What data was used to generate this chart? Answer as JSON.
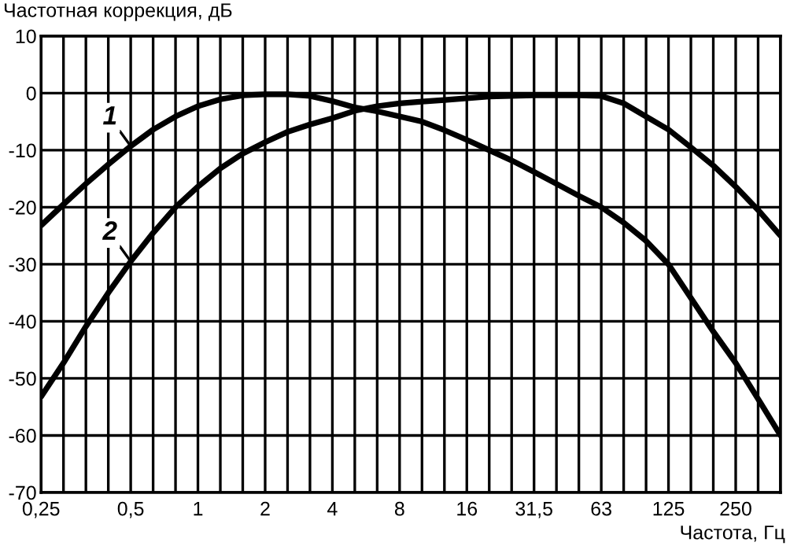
{
  "chart_data": {
    "type": "line",
    "ylabel": "Частотная коррекция, дБ",
    "xlabel": "Частота, Гц",
    "categories": [
      "0,25",
      null,
      null,
      null,
      "0,5",
      null,
      null,
      "1",
      null,
      null,
      "2",
      null,
      null,
      "4",
      null,
      null,
      "8",
      null,
      null,
      "16",
      null,
      null,
      "31,5",
      null,
      null,
      "63",
      null,
      null,
      "125",
      null,
      null,
      "250",
      null,
      null
    ],
    "series": [
      {
        "color": "#000000",
        "values": [
          -23.2,
          -19.5,
          -15.9,
          -12.5,
          -9.3,
          -6.4,
          -4.1,
          -2.3,
          -1.1,
          -0.4,
          -0.2,
          -0.2,
          -0.5,
          -1.4,
          -2.5,
          -3.2,
          -4.1,
          -5,
          -6.5,
          -8.2,
          -10,
          -11.8,
          -13.8,
          -15.9,
          -18,
          -20,
          -22.7,
          -25.9,
          -30,
          -35.9,
          -41.8,
          -47.3,
          -53.6,
          -60
        ]
      },
      {
        "color": "#000000",
        "values": [
          -53.2,
          -47.3,
          -40.9,
          -35,
          -29.5,
          -24.5,
          -20,
          -16.4,
          -13.2,
          -10.6,
          -8.6,
          -6.8,
          -5.5,
          -4.4,
          -3.1,
          -2.3,
          -1.8,
          -1.5,
          -1.2,
          -0.9,
          -0.6,
          -0.5,
          -0.4,
          -0.4,
          -0.4,
          -0.5,
          -1.8,
          -4.1,
          -6.4,
          -9.5,
          -12.7,
          -16.4,
          -20.5,
          -25
        ]
      }
    ],
    "annotations": [
      {
        "text": "1",
        "x": "0,5",
        "y": -9.3
      },
      {
        "text": "2",
        "x": "0,5",
        "y": -29.5
      }
    ],
    "ylim": [
      -70,
      10
    ],
    "yticks": [
      -70,
      -60,
      -50,
      -40,
      -30,
      -20,
      -10,
      0,
      10
    ],
    "grid": true,
    "legend": false
  }
}
